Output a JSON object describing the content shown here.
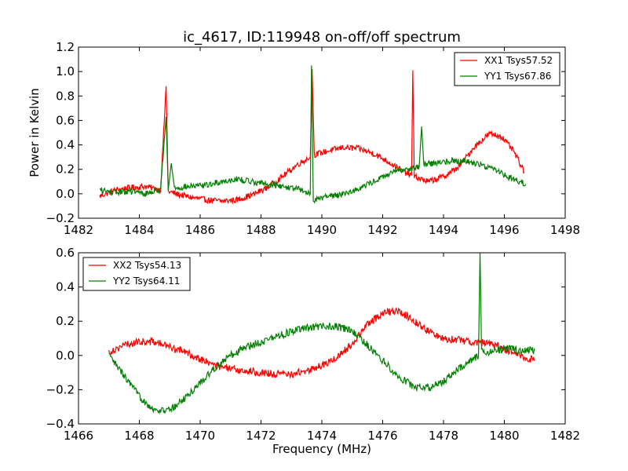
{
  "chart_data": [
    {
      "type": "line",
      "title": "ic_4617, ID:119948 on-off/off spectrum",
      "xlabel": "",
      "ylabel": "Power in Kelvin",
      "xlim": [
        1482,
        1498
      ],
      "ylim": [
        -0.2,
        1.2
      ],
      "xticks": [
        "1482",
        "1484",
        "1486",
        "1488",
        "1490",
        "1492",
        "1494",
        "1496",
        "1498"
      ],
      "yticks": [
        "−0.2",
        "0.0",
        "0.2",
        "0.4",
        "0.6",
        "0.8",
        "1.0",
        "1.2"
      ],
      "legend_position": "top-right",
      "grid": false,
      "series": [
        {
          "name": "XX1 Tsys57.52",
          "color": "#ff0000",
          "points": [
            [
              1482.7,
              -0.02
            ],
            [
              1483.2,
              0.03
            ],
            [
              1483.7,
              0.05
            ],
            [
              1484.2,
              0.06
            ],
            [
              1484.7,
              0.03
            ],
            [
              1484.88,
              0.88
            ],
            [
              1484.95,
              0.02
            ],
            [
              1485.2,
              0.0
            ],
            [
              1485.7,
              -0.03
            ],
            [
              1486.2,
              -0.05
            ],
            [
              1486.7,
              -0.06
            ],
            [
              1487.2,
              -0.05
            ],
            [
              1487.7,
              -0.01
            ],
            [
              1488.2,
              0.05
            ],
            [
              1488.7,
              0.14
            ],
            [
              1489.2,
              0.24
            ],
            [
              1489.62,
              0.3
            ],
            [
              1489.68,
              1.02
            ],
            [
              1489.75,
              0.32
            ],
            [
              1490.2,
              0.35
            ],
            [
              1490.7,
              0.38
            ],
            [
              1491.2,
              0.37
            ],
            [
              1491.7,
              0.33
            ],
            [
              1492.2,
              0.26
            ],
            [
              1492.7,
              0.18
            ],
            [
              1492.95,
              0.15
            ],
            [
              1492.99,
              1.01
            ],
            [
              1493.04,
              0.14
            ],
            [
              1493.5,
              0.1
            ],
            [
              1494.0,
              0.14
            ],
            [
              1494.5,
              0.22
            ],
            [
              1495.0,
              0.38
            ],
            [
              1495.5,
              0.49
            ],
            [
              1495.9,
              0.47
            ],
            [
              1496.3,
              0.35
            ],
            [
              1496.65,
              0.18
            ]
          ]
        },
        {
          "name": "YY1 Tsys67.86",
          "color": "#008000",
          "points": [
            [
              1482.7,
              0.03
            ],
            [
              1483.2,
              0.01
            ],
            [
              1483.7,
              0.02
            ],
            [
              1484.2,
              0.0
            ],
            [
              1484.7,
              0.04
            ],
            [
              1484.88,
              0.63
            ],
            [
              1484.95,
              0.03
            ],
            [
              1485.05,
              0.25
            ],
            [
              1485.15,
              0.05
            ],
            [
              1485.7,
              0.06
            ],
            [
              1486.2,
              0.07
            ],
            [
              1486.7,
              0.1
            ],
            [
              1487.2,
              0.12
            ],
            [
              1487.7,
              0.1
            ],
            [
              1488.2,
              0.08
            ],
            [
              1488.7,
              0.06
            ],
            [
              1489.2,
              0.04
            ],
            [
              1489.62,
              0.0
            ],
            [
              1489.66,
              1.05
            ],
            [
              1489.72,
              -0.05
            ],
            [
              1490.2,
              -0.02
            ],
            [
              1490.7,
              0.0
            ],
            [
              1491.2,
              0.04
            ],
            [
              1491.7,
              0.1
            ],
            [
              1492.2,
              0.16
            ],
            [
              1492.7,
              0.2
            ],
            [
              1493.2,
              0.22
            ],
            [
              1493.28,
              0.55
            ],
            [
              1493.35,
              0.24
            ],
            [
              1493.7,
              0.25
            ],
            [
              1494.2,
              0.27
            ],
            [
              1494.7,
              0.27
            ],
            [
              1495.2,
              0.24
            ],
            [
              1495.7,
              0.2
            ],
            [
              1496.2,
              0.13
            ],
            [
              1496.7,
              0.08
            ]
          ]
        }
      ]
    },
    {
      "type": "line",
      "title": "",
      "xlabel": "Frequency (MHz)",
      "ylabel": "",
      "xlim": [
        1466,
        1482
      ],
      "ylim": [
        -0.4,
        0.6
      ],
      "xticks": [
        "1466",
        "1468",
        "1470",
        "1472",
        "1474",
        "1476",
        "1478",
        "1480",
        "1482"
      ],
      "yticks": [
        "−0.4",
        "−0.2",
        "0.0",
        "0.2",
        "0.4",
        "0.6"
      ],
      "legend_position": "top-left",
      "grid": false,
      "series": [
        {
          "name": "XX2 Tsys54.13",
          "color": "#ff0000",
          "points": [
            [
              1467.0,
              0.02
            ],
            [
              1467.5,
              0.06
            ],
            [
              1468.0,
              0.08
            ],
            [
              1468.5,
              0.08
            ],
            [
              1469.0,
              0.05
            ],
            [
              1469.5,
              0.02
            ],
            [
              1470.0,
              -0.02
            ],
            [
              1470.5,
              -0.06
            ],
            [
              1471.0,
              -0.08
            ],
            [
              1471.5,
              -0.09
            ],
            [
              1472.0,
              -0.1
            ],
            [
              1472.5,
              -0.11
            ],
            [
              1473.0,
              -0.11
            ],
            [
              1473.5,
              -0.09
            ],
            [
              1474.0,
              -0.06
            ],
            [
              1474.5,
              -0.01
            ],
            [
              1475.0,
              0.07
            ],
            [
              1475.5,
              0.18
            ],
            [
              1476.0,
              0.25
            ],
            [
              1476.5,
              0.26
            ],
            [
              1477.0,
              0.21
            ],
            [
              1477.5,
              0.14
            ],
            [
              1478.0,
              0.1
            ],
            [
              1478.5,
              0.09
            ],
            [
              1479.0,
              0.08
            ],
            [
              1479.5,
              0.07
            ],
            [
              1480.0,
              0.04
            ],
            [
              1480.5,
              0.0
            ],
            [
              1481.0,
              -0.03
            ]
          ]
        },
        {
          "name": "YY2 Tsys64.11",
          "color": "#008000",
          "points": [
            [
              1467.0,
              0.0
            ],
            [
              1467.5,
              -0.12
            ],
            [
              1468.0,
              -0.24
            ],
            [
              1468.5,
              -0.32
            ],
            [
              1469.0,
              -0.32
            ],
            [
              1469.5,
              -0.25
            ],
            [
              1470.0,
              -0.16
            ],
            [
              1470.5,
              -0.07
            ],
            [
              1471.0,
              0.0
            ],
            [
              1471.5,
              0.05
            ],
            [
              1472.0,
              0.08
            ],
            [
              1472.5,
              0.11
            ],
            [
              1473.0,
              0.14
            ],
            [
              1473.5,
              0.16
            ],
            [
              1474.0,
              0.17
            ],
            [
              1474.5,
              0.17
            ],
            [
              1475.0,
              0.14
            ],
            [
              1475.5,
              0.06
            ],
            [
              1476.0,
              -0.03
            ],
            [
              1476.5,
              -0.12
            ],
            [
              1477.0,
              -0.18
            ],
            [
              1477.5,
              -0.19
            ],
            [
              1478.0,
              -0.15
            ],
            [
              1478.5,
              -0.08
            ],
            [
              1479.0,
              -0.02
            ],
            [
              1479.15,
              0.0
            ],
            [
              1479.2,
              0.6
            ],
            [
              1479.25,
              0.02
            ],
            [
              1479.5,
              0.02
            ],
            [
              1480.0,
              0.04
            ],
            [
              1480.5,
              0.03
            ],
            [
              1481.0,
              0.03
            ]
          ]
        }
      ]
    }
  ]
}
